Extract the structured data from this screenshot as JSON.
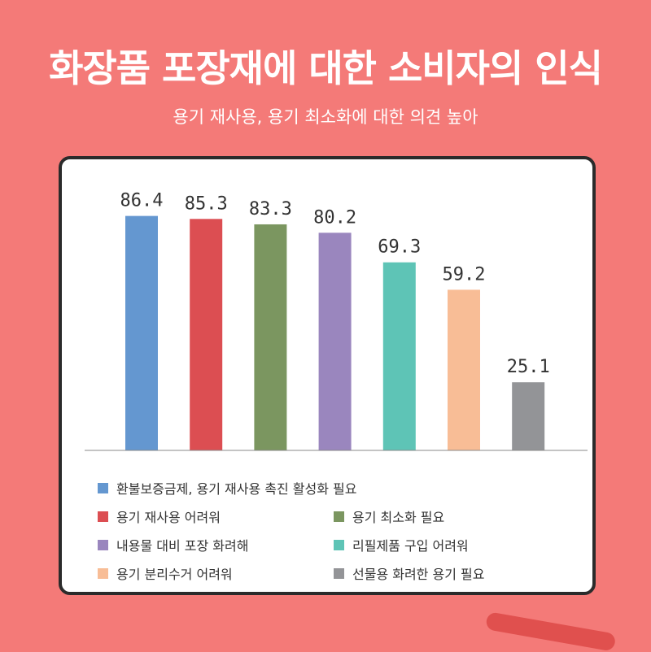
{
  "header": {
    "title": "화장품 포장재에 대한 소비자의 인식",
    "subtitle": "용기 재사용, 용기 최소화에 대한 의견 높아"
  },
  "colors": {
    "background": "#f47a78",
    "card": "#ffffff",
    "border": "#2b2b2b"
  },
  "chart_data": {
    "type": "bar",
    "title": "",
    "xlabel": "",
    "ylabel": "",
    "ylim": [
      0,
      100
    ],
    "grid": false,
    "legend_position": "bottom",
    "categories": [
      "환불보증금제, 용기 재사용 촉진 활성화 필요",
      "용기 재사용 어려워",
      "용기 최소화 필요",
      "내용물 대비 포장 화려해",
      "리필제품 구입 어려워",
      "용기 분리수거 어려워",
      "선물용 화려한 용기 필요"
    ],
    "values": [
      86.4,
      85.3,
      83.3,
      80.2,
      69.3,
      59.2,
      25.1
    ],
    "value_labels": [
      "86.4",
      "85.3",
      "83.3",
      "80.2",
      "69.3",
      "59.2",
      "25.1"
    ],
    "colors": [
      "#6497d0",
      "#dc4e52",
      "#7b9660",
      "#9a86be",
      "#5ec4b6",
      "#f8bd96",
      "#939497"
    ]
  }
}
